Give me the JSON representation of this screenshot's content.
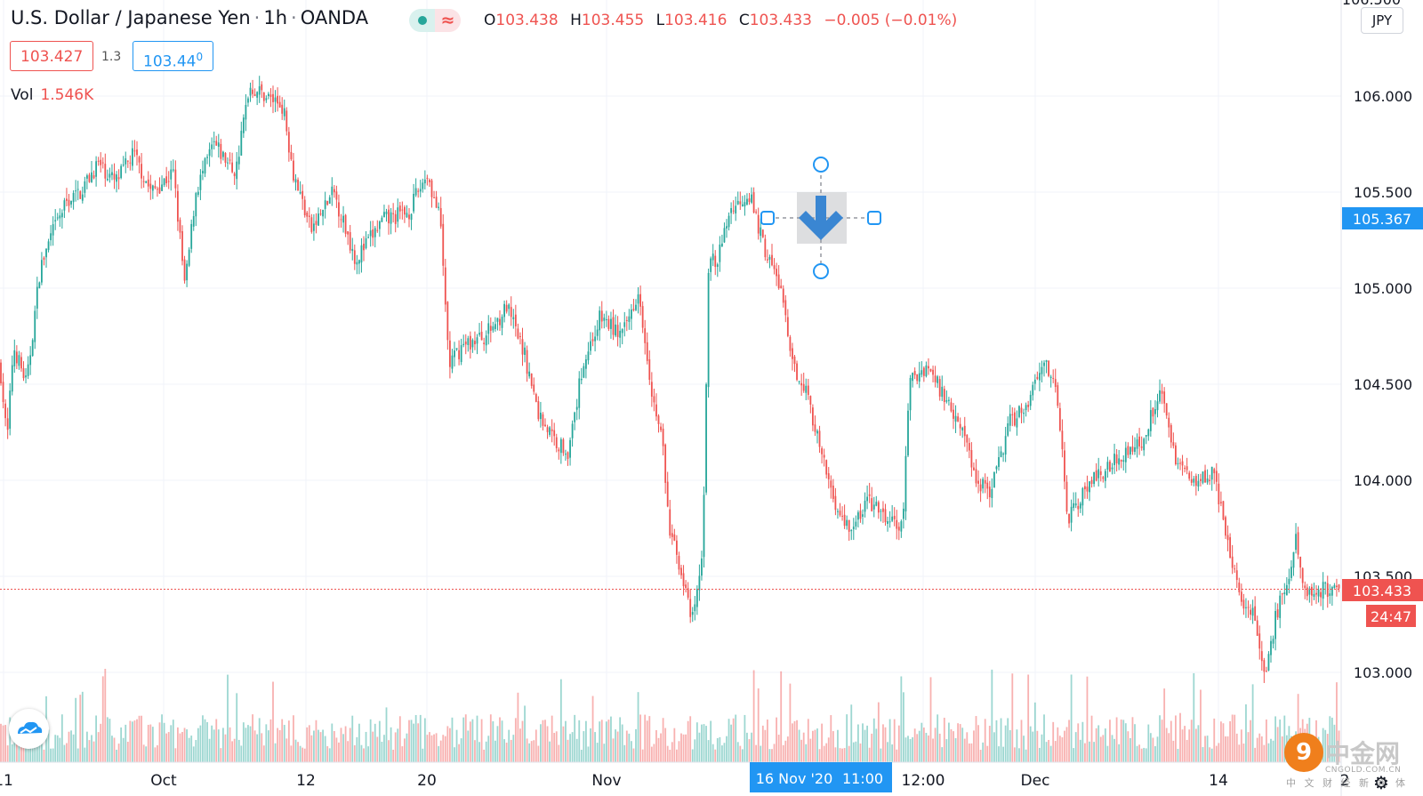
{
  "header": {
    "symbol": "U.S. Dollar / Japanese Yen",
    "interval": "1h",
    "source": "OANDA",
    "market_status_icon": "market-open-dot-icon",
    "replay_icon": "approx-icon",
    "open_label": "O",
    "open": "103.438",
    "high_label": "H",
    "high": "103.455",
    "low_label": "L",
    "low": "103.416",
    "close_label": "C",
    "close": "103.433",
    "change": "−0.005 (−0.01%)"
  },
  "trade": {
    "bid": "103.427",
    "spread": "1.3",
    "ask": "103.44",
    "ask_superscript": "0"
  },
  "volume": {
    "label": "Vol",
    "value": "1.546K"
  },
  "currency_button": "JPY",
  "colors": {
    "up": "#26a69a",
    "down": "#ef5350",
    "accent": "#2196f3",
    "arrow": "#3a86d2"
  },
  "chart_data": {
    "type": "candlestick",
    "title": "U.S. Dollar / Japanese Yen",
    "y_axis": {
      "ticks": [
        "106.000",
        "105.500",
        "105.000",
        "104.500",
        "104.000",
        "103.500",
        "103.000"
      ],
      "tick_values": [
        106.0,
        105.5,
        105.0,
        104.5,
        104.0,
        103.5,
        103.0
      ],
      "top_partial_label": "106.500",
      "ylim": [
        102.5,
        106.5
      ]
    },
    "x_axis": {
      "ticks": [
        "11",
        "Oct",
        "12",
        "20",
        "Nov",
        "12:00",
        "Dec",
        "14",
        "2"
      ]
    },
    "price_path": [
      {
        "t": 0,
        "p": 104.6
      },
      {
        "t": 8,
        "p": 104.2
      },
      {
        "t": 15,
        "p": 104.7
      },
      {
        "t": 30,
        "p": 104.5
      },
      {
        "t": 45,
        "p": 105.1
      },
      {
        "t": 60,
        "p": 105.3
      },
      {
        "t": 75,
        "p": 105.45
      },
      {
        "t": 90,
        "p": 105.5
      },
      {
        "t": 110,
        "p": 105.65
      },
      {
        "t": 130,
        "p": 105.55
      },
      {
        "t": 150,
        "p": 105.7
      },
      {
        "t": 170,
        "p": 105.5
      },
      {
        "t": 195,
        "p": 105.6
      },
      {
        "t": 208,
        "p": 105.0
      },
      {
        "t": 220,
        "p": 105.5
      },
      {
        "t": 240,
        "p": 105.75
      },
      {
        "t": 265,
        "p": 105.6
      },
      {
        "t": 280,
        "p": 106.05
      },
      {
        "t": 300,
        "p": 106.0
      },
      {
        "t": 318,
        "p": 105.95
      },
      {
        "t": 330,
        "p": 105.6
      },
      {
        "t": 350,
        "p": 105.3
      },
      {
        "t": 375,
        "p": 105.5
      },
      {
        "t": 400,
        "p": 105.15
      },
      {
        "t": 430,
        "p": 105.35
      },
      {
        "t": 460,
        "p": 105.4
      },
      {
        "t": 480,
        "p": 105.6
      },
      {
        "t": 495,
        "p": 105.35
      },
      {
        "t": 505,
        "p": 104.6
      },
      {
        "t": 520,
        "p": 104.7
      },
      {
        "t": 545,
        "p": 104.75
      },
      {
        "t": 570,
        "p": 104.9
      },
      {
        "t": 590,
        "p": 104.65
      },
      {
        "t": 605,
        "p": 104.35
      },
      {
        "t": 625,
        "p": 104.2
      },
      {
        "t": 640,
        "p": 104.15
      },
      {
        "t": 655,
        "p": 104.6
      },
      {
        "t": 675,
        "p": 104.85
      },
      {
        "t": 700,
        "p": 104.75
      },
      {
        "t": 718,
        "p": 105.0
      },
      {
        "t": 735,
        "p": 104.4
      },
      {
        "t": 745,
        "p": 104.2
      },
      {
        "t": 752,
        "p": 103.75
      },
      {
        "t": 765,
        "p": 103.55
      },
      {
        "t": 778,
        "p": 103.25
      },
      {
        "t": 790,
        "p": 103.6
      },
      {
        "t": 797,
        "p": 105.2
      },
      {
        "t": 805,
        "p": 105.1
      },
      {
        "t": 820,
        "p": 105.4
      },
      {
        "t": 842,
        "p": 105.5
      },
      {
        "t": 860,
        "p": 105.2
      },
      {
        "t": 878,
        "p": 105.0
      },
      {
        "t": 890,
        "p": 104.6
      },
      {
        "t": 905,
        "p": 104.5
      },
      {
        "t": 925,
        "p": 104.1
      },
      {
        "t": 945,
        "p": 103.8
      },
      {
        "t": 960,
        "p": 103.75
      },
      {
        "t": 975,
        "p": 103.9
      },
      {
        "t": 995,
        "p": 103.8
      },
      {
        "t": 1015,
        "p": 103.75
      },
      {
        "t": 1022,
        "p": 104.5
      },
      {
        "t": 1042,
        "p": 104.6
      },
      {
        "t": 1060,
        "p": 104.45
      },
      {
        "t": 1080,
        "p": 104.3
      },
      {
        "t": 1098,
        "p": 104.0
      },
      {
        "t": 1115,
        "p": 103.95
      },
      {
        "t": 1135,
        "p": 104.3
      },
      {
        "t": 1155,
        "p": 104.4
      },
      {
        "t": 1173,
        "p": 104.65
      },
      {
        "t": 1190,
        "p": 104.4
      },
      {
        "t": 1200,
        "p": 103.8
      },
      {
        "t": 1220,
        "p": 103.95
      },
      {
        "t": 1240,
        "p": 104.05
      },
      {
        "t": 1265,
        "p": 104.15
      },
      {
        "t": 1285,
        "p": 104.2
      },
      {
        "t": 1305,
        "p": 104.5
      },
      {
        "t": 1318,
        "p": 104.15
      },
      {
        "t": 1340,
        "p": 104.0
      },
      {
        "t": 1365,
        "p": 104.05
      },
      {
        "t": 1378,
        "p": 103.7
      },
      {
        "t": 1395,
        "p": 103.4
      },
      {
        "t": 1410,
        "p": 103.3
      },
      {
        "t": 1422,
        "p": 102.95
      },
      {
        "t": 1435,
        "p": 103.3
      },
      {
        "t": 1450,
        "p": 103.5
      },
      {
        "t": 1458,
        "p": 103.7
      },
      {
        "t": 1465,
        "p": 103.45
      },
      {
        "t": 1470,
        "p": 103.43
      }
    ],
    "last_price": 103.433,
    "drawing_marker": {
      "type": "arrow-down",
      "price": 105.367
    }
  },
  "price_labels": {
    "marker_price": "105.367",
    "last_price": "103.433",
    "countdown": "24:47"
  },
  "crosshair_label": {
    "date": "16 Nov '20",
    "time": "11:00"
  },
  "watermark": {
    "icon": "cngold-logo-icon",
    "title": "中金网",
    "url": "CNGOLD.COM.CN",
    "tagline": "中 文 财 经 新 媒 体"
  }
}
